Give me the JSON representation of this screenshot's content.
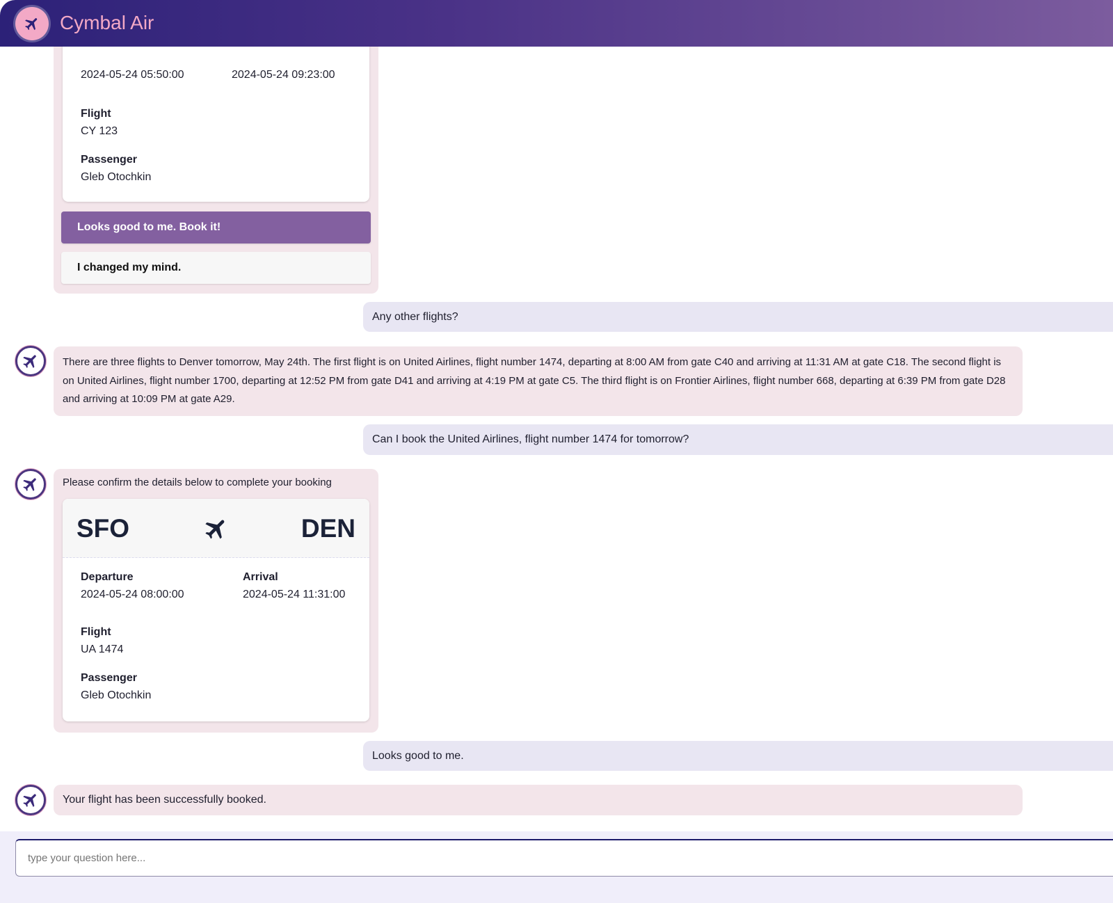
{
  "header": {
    "title": "Cymbal Air",
    "logo_icon": "airplane-icon"
  },
  "messages": {
    "m1": {
      "departure_value": "2024-05-24 05:50:00",
      "arrival_value": "2024-05-24 09:23:00",
      "flight_label": "Flight",
      "flight_value": "CY 123",
      "passenger_label": "Passenger",
      "passenger_value": "Gleb Otochkin",
      "confirm_button": "Looks good to me. Book it!",
      "cancel_button": "I changed my mind."
    },
    "u1": "Any other flights?",
    "b1": "There are three flights to Denver tomorrow, May 24th. The first flight is on United Airlines, flight number 1474, departing at 8:00 AM from gate C40 and arriving at 11:31 AM at gate C18. The second flight is on United Airlines, flight number 1700, departing at 12:52 PM from gate D41 and arriving at 4:19 PM at gate C5. The third flight is on Frontier Airlines, flight number 668, departing at 6:39 PM from gate D28 and arriving at 10:09 PM at gate A29.",
    "u2": "Can I book the United Airlines, flight number 1474 for tomorrow?",
    "b2": {
      "intro": "Please confirm the details below to complete your booking",
      "origin": "SFO",
      "destination": "DEN",
      "departure_label": "Departure",
      "departure_value": "2024-05-24 08:00:00",
      "arrival_label": "Arrival",
      "arrival_value": "2024-05-24 11:31:00",
      "flight_label": "Flight",
      "flight_value": "UA 1474",
      "passenger_label": "Passenger",
      "passenger_value": "Gleb Otochkin"
    },
    "u3": "Looks good to me.",
    "b3": "Your flight has been successfully booked."
  },
  "input": {
    "placeholder": "type your question here..."
  },
  "colors": {
    "accent": "#8360a0",
    "bot_bubble": "#f3e5ea",
    "user_bubble": "#e8e6f3",
    "header_start": "#2c2178",
    "header_end": "#7c5c9e"
  }
}
